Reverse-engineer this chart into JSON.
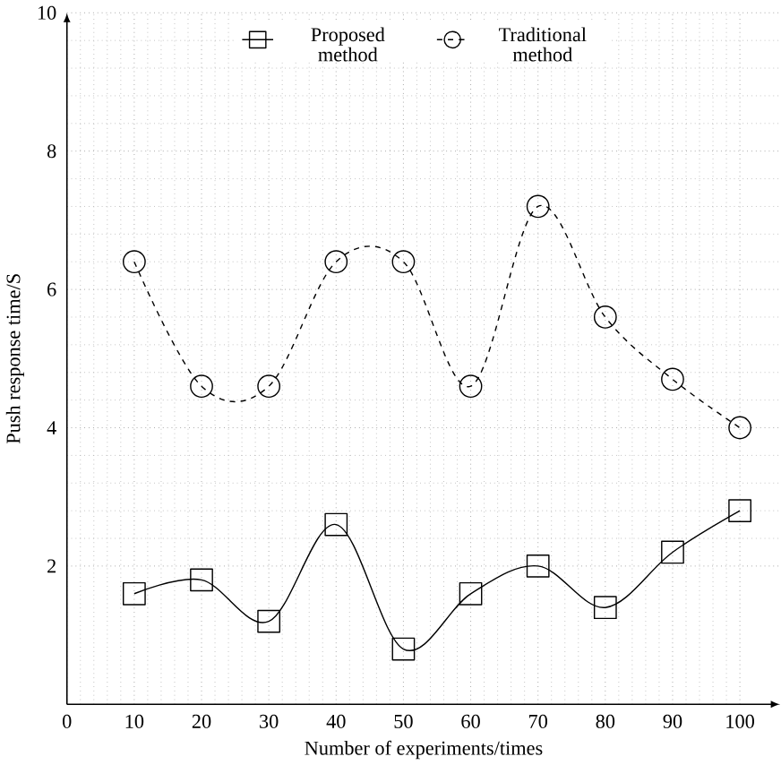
{
  "chart_data": {
    "type": "line",
    "xlabel": "Number of experiments/times",
    "ylabel": "Push response time/S",
    "x": [
      10,
      20,
      30,
      40,
      50,
      60,
      70,
      80,
      90,
      100
    ],
    "series": [
      {
        "name": "Proposed method",
        "color": "#000000",
        "marker": "square",
        "line_style": "solid",
        "values": [
          1.6,
          1.8,
          1.2,
          2.6,
          0.8,
          1.6,
          2.0,
          1.4,
          2.2,
          2.8
        ]
      },
      {
        "name": "Traditional method",
        "color": "#000000",
        "marker": "circle",
        "line_style": "dashed",
        "values": [
          6.4,
          4.6,
          4.6,
          6.4,
          6.4,
          4.6,
          7.2,
          5.6,
          4.7,
          4.0
        ]
      }
    ],
    "xlim": [
      0,
      106
    ],
    "ylim": [
      0,
      10
    ],
    "xticks": [
      0,
      10,
      20,
      30,
      40,
      50,
      60,
      70,
      80,
      90,
      100
    ],
    "yticks": [
      2,
      4,
      6,
      8,
      10
    ],
    "grid": true,
    "legend": "top"
  }
}
